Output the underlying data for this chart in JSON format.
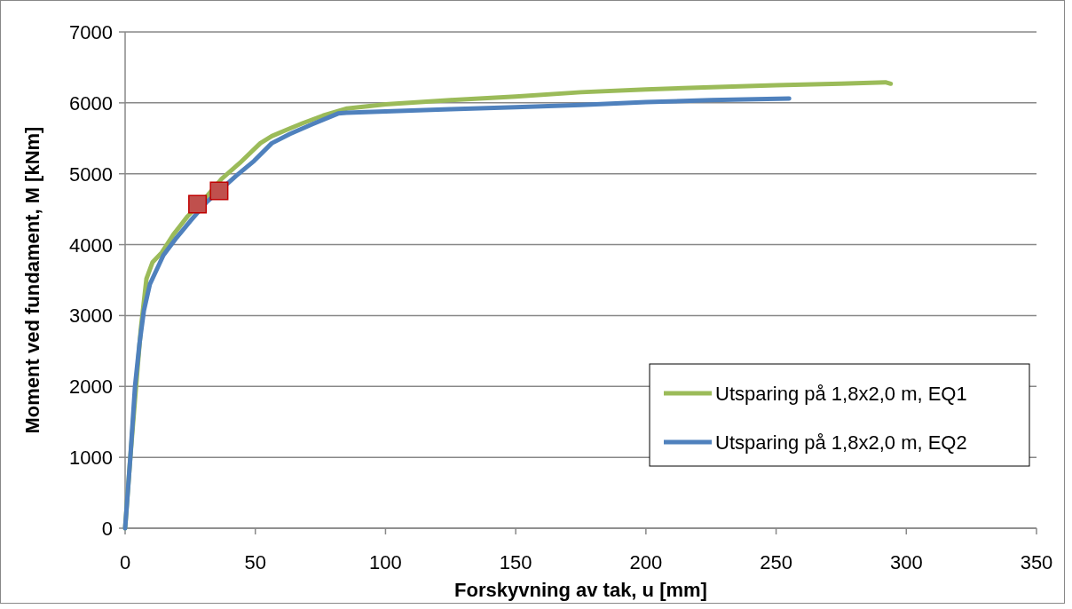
{
  "chart_data": {
    "type": "line",
    "xlabel": "Forskyvning av tak, u [mm]",
    "ylabel": "Moment ved fundament, M [kNm]",
    "xlim": [
      0,
      350
    ],
    "xticks": [
      0,
      50,
      100,
      150,
      200,
      250,
      300,
      350
    ],
    "ylim": [
      0,
      7000
    ],
    "yticks": [
      0,
      1000,
      2000,
      3000,
      4000,
      5000,
      6000,
      7000
    ],
    "grid": "y",
    "legend": "bottom right",
    "marker": "none",
    "line_style": "solid",
    "series": [
      {
        "name": "Utsparing på 1,8x2,0 m, EQ1",
        "color": "#9bbb59",
        "x": [
          0,
          2,
          4.2,
          6,
          8.2,
          10.5,
          14.1,
          18.5,
          24,
          31.3,
          37.1,
          44,
          51.9,
          56.3,
          62,
          68,
          76,
          85.2,
          100,
          125,
          150,
          175,
          200,
          225,
          250,
          275,
          292,
          294
        ],
        "values": [
          0,
          1000,
          2000,
          2800,
          3520,
          3750,
          3890,
          4140,
          4400,
          4680,
          4930,
          5150,
          5430,
          5530,
          5620,
          5710,
          5820,
          5920,
          5980,
          6040,
          6090,
          6150,
          6190,
          6220,
          6250,
          6270,
          6290,
          6270
        ]
      },
      {
        "name": "Utsparing på 1,8x2,0 m, EQ2",
        "color": "#4f81bd",
        "x": [
          0,
          2,
          3.8,
          5.5,
          7.2,
          9.5,
          14.7,
          19.8,
          25,
          31.3,
          42.6,
          49.5,
          56.3,
          63.2,
          72,
          81.8,
          85,
          100,
          125,
          150,
          175,
          200,
          225,
          255
        ],
        "values": [
          0,
          1000,
          2000,
          2600,
          3070,
          3440,
          3850,
          4100,
          4330,
          4600,
          4970,
          5180,
          5430,
          5560,
          5700,
          5850,
          5860,
          5880,
          5910,
          5940,
          5970,
          6010,
          6040,
          6060
        ]
      },
      {
        "type": "scatter",
        "marker": "square",
        "color": "#c0504d",
        "x": [
          27.8,
          36.1
        ],
        "values": [
          4570,
          4760
        ]
      }
    ]
  }
}
